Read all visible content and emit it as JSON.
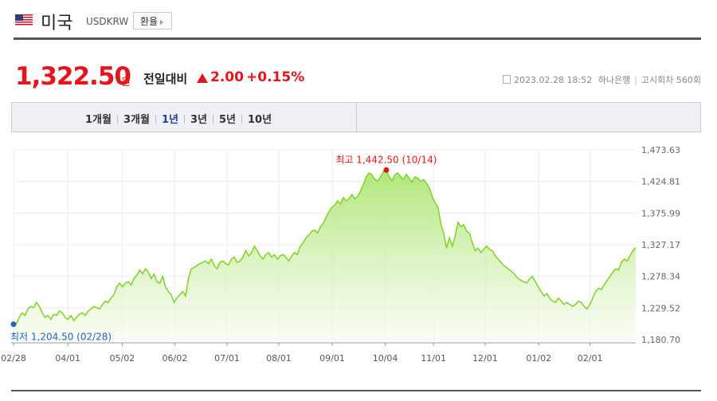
{
  "header": {
    "country": "미국",
    "code": "USDKRW",
    "exchange_button": "환율",
    "flag_icon": "us-flag-icon"
  },
  "quote": {
    "price": "1,322.50",
    "unit": "원",
    "compare_label": "전일대비",
    "change": "2.00",
    "change_pct": "+0.15%",
    "direction": "up",
    "timestamp": "2023.02.28 18:52",
    "bank": "하나은행",
    "round": "고시회차 560회"
  },
  "period_tabs": [
    {
      "label": "1개월",
      "active": false
    },
    {
      "label": "3개월",
      "active": false
    },
    {
      "label": "1년",
      "active": true
    },
    {
      "label": "3년",
      "active": false
    },
    {
      "label": "5년",
      "active": false
    },
    {
      "label": "10년",
      "active": false
    }
  ],
  "colors": {
    "accent_red": "#e6141c",
    "active_tab": "#1f3fa6",
    "line": "#7ed321",
    "low_marker": "#1f64c8"
  },
  "chart_data": {
    "type": "area",
    "x_ticks": [
      "02/28",
      "04/01",
      "05/02",
      "06/02",
      "07/01",
      "08/01",
      "09/01",
      "10/04",
      "11/01",
      "12/01",
      "01/02",
      "02/01"
    ],
    "y_ticks": [
      "1,473.63",
      "1,424.81",
      "1,375.99",
      "1,327.17",
      "1,278.34",
      "1,229.52",
      "1,180.70"
    ],
    "ylim": [
      1180.7,
      1473.63
    ],
    "grid": true,
    "high_label": "최고 1,442.50 (10/14)",
    "low_label": "최저 1,204.50 (02/28)",
    "high": 1442.5,
    "low": 1204.5,
    "values": [
      1204.5,
      1205,
      1215,
      1222,
      1218,
      1228,
      1232,
      1230,
      1238,
      1232,
      1222,
      1215,
      1218,
      1212,
      1220,
      1218,
      1225,
      1222,
      1215,
      1212,
      1218,
      1210,
      1215,
      1220,
      1222,
      1218,
      1225,
      1228,
      1232,
      1230,
      1228,
      1235,
      1240,
      1238,
      1245,
      1250,
      1262,
      1268,
      1262,
      1268,
      1270,
      1265,
      1275,
      1280,
      1288,
      1282,
      1290,
      1285,
      1275,
      1282,
      1270,
      1268,
      1278,
      1262,
      1255,
      1250,
      1238,
      1245,
      1250,
      1255,
      1248,
      1275,
      1290,
      1292,
      1295,
      1298,
      1300,
      1302,
      1298,
      1305,
      1295,
      1290,
      1300,
      1302,
      1298,
      1296,
      1305,
      1308,
      1300,
      1302,
      1308,
      1318,
      1310,
      1315,
      1325,
      1318,
      1310,
      1305,
      1312,
      1315,
      1308,
      1312,
      1305,
      1310,
      1312,
      1308,
      1302,
      1310,
      1315,
      1312,
      1325,
      1330,
      1338,
      1342,
      1348,
      1350,
      1345,
      1355,
      1360,
      1370,
      1378,
      1385,
      1388,
      1395,
      1390,
      1400,
      1395,
      1398,
      1405,
      1398,
      1402,
      1410,
      1420,
      1432,
      1438,
      1435,
      1428,
      1425,
      1432,
      1440,
      1442.5,
      1432,
      1426,
      1435,
      1438,
      1432,
      1428,
      1436,
      1430,
      1424,
      1432,
      1430,
      1425,
      1428,
      1422,
      1415,
      1402,
      1392,
      1385,
      1360,
      1345,
      1322,
      1338,
      1325,
      1340,
      1362,
      1355,
      1358,
      1348,
      1345,
      1330,
      1318,
      1322,
      1315,
      1320,
      1325,
      1320,
      1318,
      1310,
      1305,
      1300,
      1295,
      1292,
      1288,
      1285,
      1280,
      1275,
      1272,
      1270,
      1268,
      1275,
      1278,
      1270,
      1262,
      1255,
      1248,
      1252,
      1245,
      1240,
      1238,
      1245,
      1240,
      1235,
      1238,
      1235,
      1232,
      1235,
      1240,
      1238,
      1232,
      1228,
      1235,
      1245,
      1255,
      1260,
      1258,
      1265,
      1272,
      1278,
      1285,
      1290,
      1288,
      1300,
      1305,
      1302,
      1310,
      1318,
      1322.5
    ]
  }
}
